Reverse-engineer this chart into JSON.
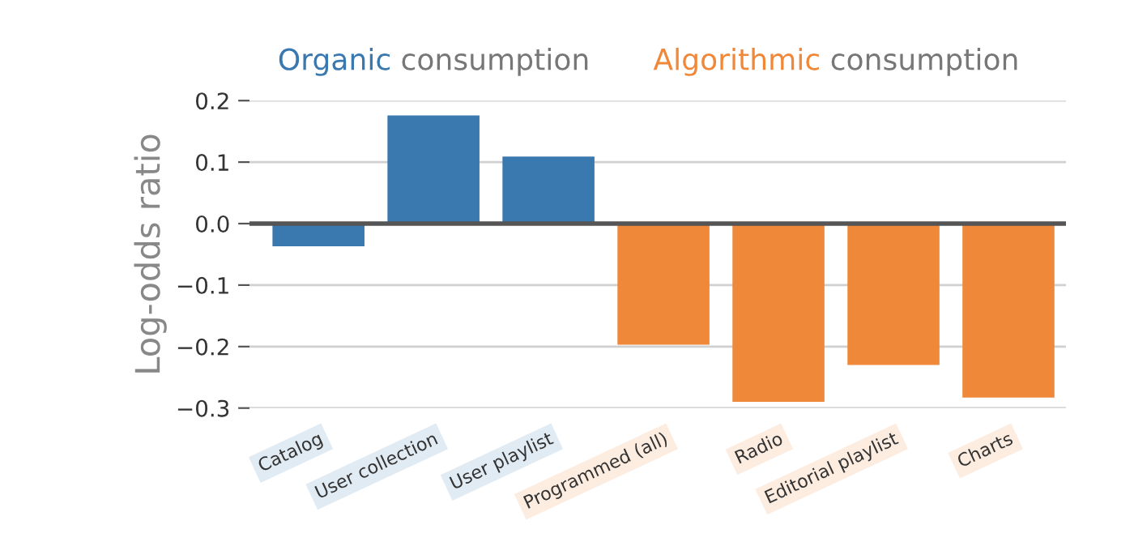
{
  "chart_data": {
    "type": "bar",
    "ylabel": "Log-odds ratio",
    "categories": [
      "Catalog",
      "User collection",
      "User playlist",
      "Programmed (all)",
      "Radio",
      "Editorial playlist",
      "Charts"
    ],
    "values": [
      -0.037,
      0.176,
      0.109,
      -0.197,
      -0.29,
      -0.23,
      -0.283
    ],
    "colors": [
      "#3a78b0",
      "#3a78b0",
      "#3a78b0",
      "#f0883a",
      "#f0883a",
      "#f0883a",
      "#f0883a"
    ],
    "annotations": [
      "Organic consumption",
      "Algorithmic consumption"
    ],
    "ylim": [
      -0.3,
      0.2
    ],
    "yticks": [
      {
        "value": -0.3,
        "label": "−0.3"
      },
      {
        "value": -0.2,
        "label": "−0.2"
      },
      {
        "value": -0.1,
        "label": "−0.1"
      },
      {
        "value": 0.0,
        "label": "0.0"
      },
      {
        "value": 0.1,
        "label": "0.1"
      },
      {
        "value": 0.2,
        "label": "0.2"
      }
    ],
    "ref_lines": [
      {
        "axis": "y",
        "value": 0,
        "color": "#555555"
      }
    ],
    "grid": "y",
    "legend": false
  }
}
